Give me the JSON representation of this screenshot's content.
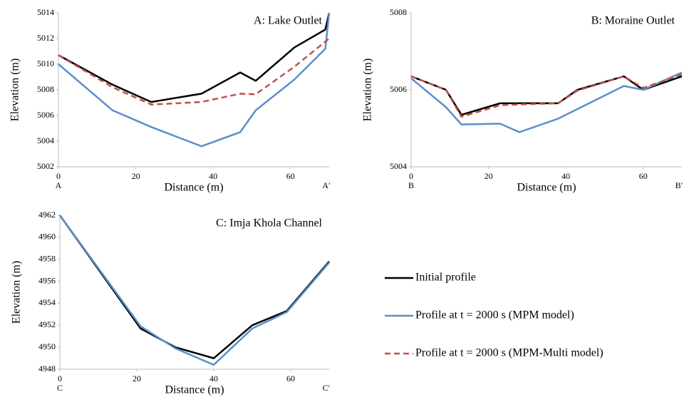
{
  "chart_data": [
    {
      "type": "line",
      "title": "A: Lake Outlet",
      "xlabel": "Distance (m)",
      "ylabel": "Elevation (m)",
      "end_labels": [
        "A",
        "A′"
      ],
      "xlim": [
        0,
        70
      ],
      "xticks": [
        0,
        20,
        40,
        60
      ],
      "ylim": [
        5002,
        5014
      ],
      "yticks": [
        5002,
        5004,
        5006,
        5008,
        5010,
        5012,
        5014
      ],
      "series": [
        {
          "name": "Initial profile",
          "color": "#000000",
          "dashed": false,
          "x": [
            0,
            14,
            24,
            37,
            47,
            51,
            61,
            69,
            70
          ],
          "values": [
            5010.7,
            5008.4,
            5007.05,
            5007.7,
            5009.35,
            5008.7,
            5011.3,
            5012.7,
            5014
          ]
        },
        {
          "name": "Profile at t = 2000 s (MPM model)",
          "color": "#5b8fc9",
          "dashed": false,
          "x": [
            0,
            14,
            24,
            37,
            47,
            51,
            61,
            69,
            70
          ],
          "values": [
            5010,
            5006.4,
            5005.1,
            5003.6,
            5004.7,
            5006.4,
            5008.8,
            5011.2,
            5014
          ]
        },
        {
          "name": "Profile at t = 2000 s (MPM-Multi model)",
          "color": "#c0504d",
          "dashed": true,
          "x": [
            0,
            14,
            24,
            37,
            47,
            51,
            61,
            70
          ],
          "values": [
            5010.7,
            5008.2,
            5006.85,
            5007.05,
            5007.7,
            5007.65,
            5009.8,
            5012
          ]
        }
      ]
    },
    {
      "type": "line",
      "title": "B: Moraine Outlet",
      "xlabel": "Distance (m)",
      "ylabel": "Elevation (m)",
      "end_labels": [
        "B",
        "B′"
      ],
      "xlim": [
        0,
        70
      ],
      "xticks": [
        0,
        20,
        40,
        60
      ],
      "ylim": [
        5004,
        5008
      ],
      "yticks": [
        5004,
        5006,
        5008
      ],
      "series": [
        {
          "name": "Initial profile",
          "color": "#000000",
          "dashed": false,
          "x": [
            0,
            9,
            13,
            23,
            28,
            38,
            43,
            55,
            60,
            70
          ],
          "values": [
            5006.35,
            5006,
            5005.35,
            5005.65,
            5005.65,
            5005.65,
            5006,
            5006.35,
            5006,
            5006.35
          ]
        },
        {
          "name": "Profile at t = 2000 s (MPM model)",
          "color": "#5b8fc9",
          "dashed": false,
          "x": [
            0,
            9,
            13,
            23,
            28,
            38,
            43,
            55,
            60,
            70
          ],
          "values": [
            5006.3,
            5005.55,
            5005.1,
            5005.12,
            5004.9,
            5005.25,
            5005.5,
            5006.1,
            5006,
            5006.45
          ]
        },
        {
          "name": "Profile at t = 2000 s (MPM-Multi model)",
          "color": "#c0504d",
          "dashed": true,
          "x": [
            0,
            9,
            13,
            23,
            28,
            38,
            43,
            55,
            60,
            70
          ],
          "values": [
            5006.35,
            5006,
            5005.3,
            5005.6,
            5005.62,
            5005.65,
            5005.98,
            5006.35,
            5006.05,
            5006.4
          ]
        }
      ]
    },
    {
      "type": "line",
      "title": "C: Imja Khola Channel",
      "xlabel": "Distance (m)",
      "ylabel": "Elevation (m)",
      "end_labels": [
        "C",
        "C′"
      ],
      "xlim": [
        0,
        70
      ],
      "xticks": [
        0,
        20,
        40,
        60
      ],
      "ylim": [
        4948,
        4962
      ],
      "yticks": [
        4948,
        4950,
        4952,
        4954,
        4956,
        4958,
        4960,
        4962
      ],
      "series": [
        {
          "name": "Initial profile",
          "color": "#000000",
          "dashed": false,
          "x": [
            0,
            21,
            30,
            40,
            50,
            59,
            70
          ],
          "values": [
            4962,
            4951.7,
            4950,
            4949,
            4952,
            4953.3,
            4957.8
          ]
        },
        {
          "name": "Profile at t = 2000 s (MPM model)",
          "color": "#5b8fc9",
          "dashed": false,
          "x": [
            0,
            21,
            30,
            40,
            50,
            59,
            70
          ],
          "values": [
            4962,
            4951.9,
            4949.9,
            4948.4,
            4951.7,
            4953.2,
            4957.7
          ]
        }
      ]
    }
  ]
}
